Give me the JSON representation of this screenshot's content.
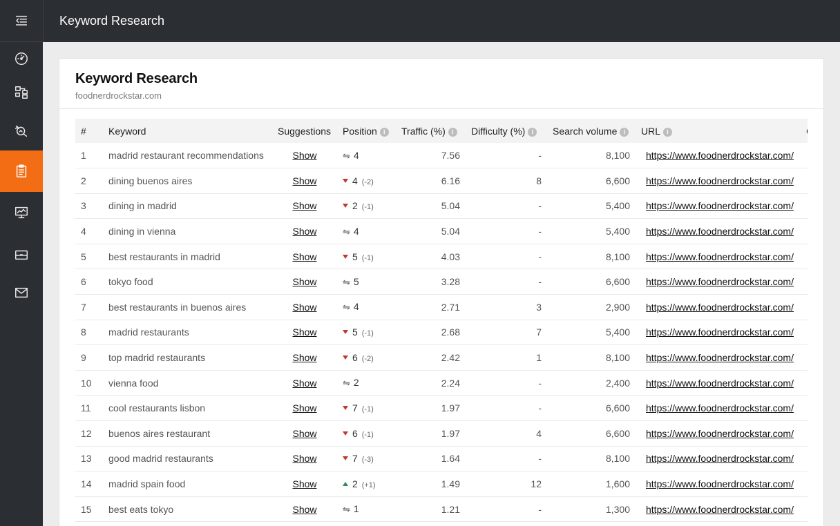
{
  "header": {
    "title": "Keyword Research"
  },
  "sidebar": {
    "items": [
      {
        "icon": "menu-collapse-icon"
      },
      {
        "icon": "dashboard-gauge-icon"
      },
      {
        "icon": "sitemap-icon"
      },
      {
        "icon": "search-analysis-icon"
      },
      {
        "icon": "clipboard-icon",
        "active": true
      },
      {
        "icon": "monitor-chart-icon"
      },
      {
        "icon": "briefcase-icon"
      },
      {
        "icon": "mail-icon"
      }
    ],
    "active_color": "#f26d14"
  },
  "card": {
    "title": "Keyword Research",
    "subtitle": "foodnerdrockstar.com"
  },
  "table": {
    "columns": {
      "num": "#",
      "keyword": "Keyword",
      "suggestions": "Suggestions",
      "position": "Position",
      "traffic": "Traffic (%)",
      "difficulty": "Difficulty (%)",
      "volume": "Search volume",
      "url": "URL",
      "extra": "C"
    },
    "rows": [
      {
        "num": "1",
        "keyword": "madrid restaurant recommendations",
        "sug": "Show",
        "trend": "same",
        "pos": "4",
        "delta": "",
        "traffic": "7.56",
        "difficulty": "-",
        "volume": "8,100",
        "url": "https://www.foodnerdrockstar.com/"
      },
      {
        "num": "2",
        "keyword": "dining buenos aires",
        "sug": "Show",
        "trend": "down",
        "pos": "4",
        "delta": "(-2)",
        "traffic": "6.16",
        "difficulty": "8",
        "volume": "6,600",
        "url": "https://www.foodnerdrockstar.com/"
      },
      {
        "num": "3",
        "keyword": "dining in madrid",
        "sug": "Show",
        "trend": "down",
        "pos": "2",
        "delta": "(-1)",
        "traffic": "5.04",
        "difficulty": "-",
        "volume": "5,400",
        "url": "https://www.foodnerdrockstar.com/"
      },
      {
        "num": "4",
        "keyword": "dining in vienna",
        "sug": "Show",
        "trend": "same",
        "pos": "4",
        "delta": "",
        "traffic": "5.04",
        "difficulty": "-",
        "volume": "5,400",
        "url": "https://www.foodnerdrockstar.com/"
      },
      {
        "num": "5",
        "keyword": "best restaurants in madrid",
        "sug": "Show",
        "trend": "down",
        "pos": "5",
        "delta": "(-1)",
        "traffic": "4.03",
        "difficulty": "-",
        "volume": "8,100",
        "url": "https://www.foodnerdrockstar.com/"
      },
      {
        "num": "6",
        "keyword": "tokyo food",
        "sug": "Show",
        "trend": "same",
        "pos": "5",
        "delta": "",
        "traffic": "3.28",
        "difficulty": "-",
        "volume": "6,600",
        "url": "https://www.foodnerdrockstar.com/"
      },
      {
        "num": "7",
        "keyword": "best restaurants in buenos aires",
        "sug": "Show",
        "trend": "same",
        "pos": "4",
        "delta": "",
        "traffic": "2.71",
        "difficulty": "3",
        "volume": "2,900",
        "url": "https://www.foodnerdrockstar.com/"
      },
      {
        "num": "8",
        "keyword": "madrid restaurants",
        "sug": "Show",
        "trend": "down",
        "pos": "5",
        "delta": "(-1)",
        "traffic": "2.68",
        "difficulty": "7",
        "volume": "5,400",
        "url": "https://www.foodnerdrockstar.com/"
      },
      {
        "num": "9",
        "keyword": "top madrid restaurants",
        "sug": "Show",
        "trend": "down",
        "pos": "6",
        "delta": "(-2)",
        "traffic": "2.42",
        "difficulty": "1",
        "volume": "8,100",
        "url": "https://www.foodnerdrockstar.com/"
      },
      {
        "num": "10",
        "keyword": "vienna food",
        "sug": "Show",
        "trend": "same",
        "pos": "2",
        "delta": "",
        "traffic": "2.24",
        "difficulty": "-",
        "volume": "2,400",
        "url": "https://www.foodnerdrockstar.com/"
      },
      {
        "num": "11",
        "keyword": "cool restaurants lisbon",
        "sug": "Show",
        "trend": "down",
        "pos": "7",
        "delta": "(-1)",
        "traffic": "1.97",
        "difficulty": "-",
        "volume": "6,600",
        "url": "https://www.foodnerdrockstar.com/"
      },
      {
        "num": "12",
        "keyword": "buenos aires restaurant",
        "sug": "Show",
        "trend": "down",
        "pos": "6",
        "delta": "(-1)",
        "traffic": "1.97",
        "difficulty": "4",
        "volume": "6,600",
        "url": "https://www.foodnerdrockstar.com/"
      },
      {
        "num": "13",
        "keyword": "good madrid restaurants",
        "sug": "Show",
        "trend": "down",
        "pos": "7",
        "delta": "(-3)",
        "traffic": "1.64",
        "difficulty": "-",
        "volume": "8,100",
        "url": "https://www.foodnerdrockstar.com/"
      },
      {
        "num": "14",
        "keyword": "madrid spain food",
        "sug": "Show",
        "trend": "up",
        "pos": "2",
        "delta": "(+1)",
        "traffic": "1.49",
        "difficulty": "12",
        "volume": "1,600",
        "url": "https://www.foodnerdrockstar.com/"
      },
      {
        "num": "15",
        "keyword": "best eats tokyo",
        "sug": "Show",
        "trend": "same",
        "pos": "1",
        "delta": "",
        "traffic": "1.21",
        "difficulty": "-",
        "volume": "1,300",
        "url": "https://www.foodnerdrockstar.com/"
      }
    ]
  }
}
